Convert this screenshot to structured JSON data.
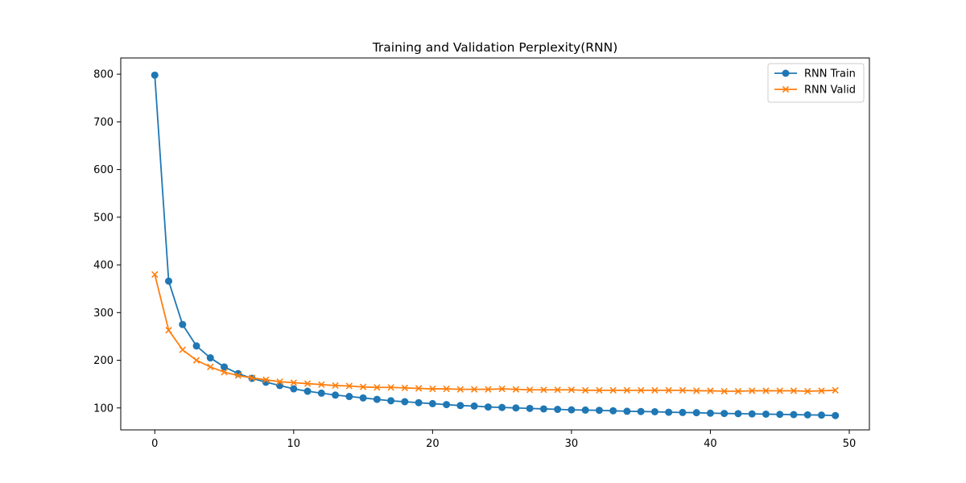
{
  "chart_data": {
    "type": "line",
    "title": "Training and Validation Perplexity(RNN)",
    "xlabel": "",
    "ylabel": "",
    "xlim": [
      -2.45,
      51.45
    ],
    "ylim": [
      54,
      834
    ],
    "xticks": [
      0,
      10,
      20,
      30,
      40,
      50
    ],
    "yticks": [
      100,
      200,
      300,
      400,
      500,
      600,
      700,
      800
    ],
    "grid": false,
    "legend_position": "top-right",
    "x": [
      0,
      1,
      2,
      3,
      4,
      5,
      6,
      7,
      8,
      9,
      10,
      11,
      12,
      13,
      14,
      15,
      16,
      17,
      18,
      19,
      20,
      21,
      22,
      23,
      24,
      25,
      26,
      27,
      28,
      29,
      30,
      31,
      32,
      33,
      34,
      35,
      36,
      37,
      38,
      39,
      40,
      41,
      42,
      43,
      44,
      45,
      46,
      47,
      48,
      49
    ],
    "series": [
      {
        "name": "RNN Train",
        "color": "#1f77b4",
        "marker": "circle",
        "values": [
          798,
          366,
          275,
          230,
          205,
          186,
          172,
          162,
          154,
          147,
          140,
          135,
          131,
          127,
          124,
          121,
          118,
          115,
          113,
          111,
          109,
          107,
          105,
          104,
          102,
          101,
          100,
          99,
          98,
          97,
          96,
          95.5,
          95,
          94,
          93,
          92.5,
          92,
          91,
          90.5,
          90,
          89,
          88.5,
          88,
          87.5,
          87,
          86.5,
          86,
          85.5,
          85,
          84
        ]
      },
      {
        "name": "RNN Valid",
        "color": "#ff7f0e",
        "marker": "x",
        "values": [
          380,
          263,
          222,
          200,
          186,
          175,
          168,
          163,
          159,
          155,
          153,
          151,
          149,
          147,
          146,
          144,
          143,
          143,
          142,
          141,
          140,
          140,
          139,
          139,
          139,
          140,
          139,
          138,
          138,
          138,
          138,
          137,
          137,
          137,
          137,
          137,
          137,
          137,
          137,
          136,
          136,
          135,
          135,
          136,
          136,
          136,
          136,
          135,
          136,
          137
        ]
      }
    ]
  }
}
